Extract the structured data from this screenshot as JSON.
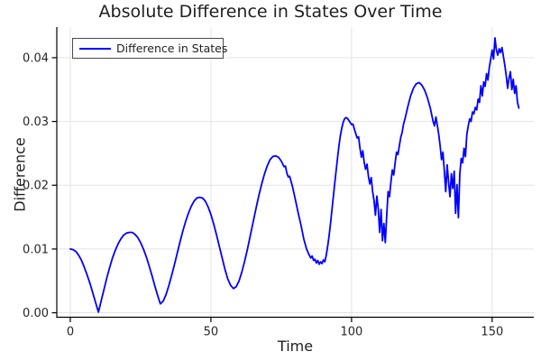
{
  "figure": {
    "title": "Absolute Difference in States Over Time",
    "background": "#ffffff"
  },
  "chart_data": {
    "type": "line",
    "title": "Absolute Difference in States Over Time",
    "xlabel": "Time",
    "ylabel": "Difference",
    "xlim": [
      -4.8,
      164.8
    ],
    "ylim": [
      -0.0007,
      0.0448
    ],
    "grid": true,
    "xticks": {
      "values": [
        0,
        50,
        100,
        150
      ],
      "labels": [
        "0",
        "50",
        "100",
        "150"
      ]
    },
    "yticks": {
      "values": [
        0,
        0.01,
        0.02,
        0.03,
        0.04
      ],
      "labels": [
        "0.00",
        "0.01",
        "0.02",
        "0.03",
        "0.04"
      ]
    },
    "style": {
      "line_color": "#0000ff",
      "line_width": 1.8,
      "grid_color": "#e4e4e4",
      "axis_color": "#000000",
      "text_color": "#1f1f1f",
      "tick_label_color": "#262626",
      "tick_label_size": 13
    },
    "legend": {
      "position": "top-left",
      "border_color": "#4a4a4a",
      "entries": [
        {
          "label": "Difference in States",
          "color": "#0000ff"
        }
      ]
    },
    "series": [
      {
        "name": "Difference in States",
        "color": "#0000ff",
        "points": [
          [
            0,
            0.01
          ],
          [
            1,
            0.0099
          ],
          [
            2,
            0.0096
          ],
          [
            3,
            0.009
          ],
          [
            4,
            0.0082
          ],
          [
            5,
            0.0071
          ],
          [
            6,
            0.0059
          ],
          [
            7,
            0.0046
          ],
          [
            8,
            0.0031
          ],
          [
            9,
            0.0016
          ],
          [
            10,
            0.0001
          ],
          [
            11,
            0.0019
          ],
          [
            12,
            0.0037
          ],
          [
            13,
            0.0055
          ],
          [
            14,
            0.0071
          ],
          [
            15,
            0.0086
          ],
          [
            16,
            0.0098
          ],
          [
            17,
            0.0108
          ],
          [
            18,
            0.0116
          ],
          [
            19,
            0.0122
          ],
          [
            20,
            0.0125
          ],
          [
            21,
            0.0126
          ],
          [
            22,
            0.0126
          ],
          [
            23,
            0.0123
          ],
          [
            24,
            0.0118
          ],
          [
            25,
            0.011
          ],
          [
            26,
            0.01
          ],
          [
            27,
            0.0088
          ],
          [
            28,
            0.0074
          ],
          [
            29,
            0.0059
          ],
          [
            30,
            0.0043
          ],
          [
            31,
            0.0028
          ],
          [
            32,
            0.0014
          ],
          [
            33,
            0.0018
          ],
          [
            34,
            0.0028
          ],
          [
            35,
            0.0042
          ],
          [
            36,
            0.0058
          ],
          [
            37,
            0.0075
          ],
          [
            38,
            0.0093
          ],
          [
            39,
            0.0111
          ],
          [
            40,
            0.0128
          ],
          [
            41,
            0.0143
          ],
          [
            42,
            0.0156
          ],
          [
            43,
            0.0167
          ],
          [
            44,
            0.0175
          ],
          [
            45,
            0.018
          ],
          [
            46,
            0.0181
          ],
          [
            47,
            0.018
          ],
          [
            48,
            0.0175
          ],
          [
            49,
            0.0166
          ],
          [
            50,
            0.0154
          ],
          [
            51,
            0.0139
          ],
          [
            52,
            0.0122
          ],
          [
            53,
            0.0104
          ],
          [
            54,
            0.0086
          ],
          [
            55,
            0.0068
          ],
          [
            56,
            0.0053
          ],
          [
            57,
            0.0043
          ],
          [
            58,
            0.0038
          ],
          [
            59,
            0.0041
          ],
          [
            60,
            0.005
          ],
          [
            61,
            0.0064
          ],
          [
            62,
            0.0081
          ],
          [
            63,
            0.01
          ],
          [
            64,
            0.0121
          ],
          [
            65,
            0.0142
          ],
          [
            66,
            0.0163
          ],
          [
            67,
            0.0183
          ],
          [
            68,
            0.0201
          ],
          [
            69,
            0.0217
          ],
          [
            70,
            0.023
          ],
          [
            71,
            0.024
          ],
          [
            72,
            0.0245
          ],
          [
            73,
            0.0246
          ],
          [
            74,
            0.0244
          ],
          [
            75,
            0.0238
          ],
          [
            76,
            0.0229
          ],
          [
            76.5,
            0.023
          ],
          [
            77,
            0.0219
          ],
          [
            77.5,
            0.0213
          ],
          [
            78,
            0.0214
          ],
          [
            78.5,
            0.0206
          ],
          [
            79,
            0.0198
          ],
          [
            80,
            0.0178
          ],
          [
            81,
            0.0157
          ],
          [
            82,
            0.0138
          ],
          [
            83,
            0.0116
          ],
          [
            84,
            0.01
          ],
          [
            85,
            0.009
          ],
          [
            85.5,
            0.0086
          ],
          [
            86,
            0.0089
          ],
          [
            86.5,
            0.0082
          ],
          [
            87,
            0.0084
          ],
          [
            87.5,
            0.0078
          ],
          [
            88,
            0.0082
          ],
          [
            88.5,
            0.0076
          ],
          [
            89,
            0.008
          ],
          [
            89.5,
            0.0077
          ],
          [
            90,
            0.0083
          ],
          [
            90.5,
            0.008
          ],
          [
            91,
            0.009
          ],
          [
            91.5,
            0.0104
          ],
          [
            92,
            0.012
          ],
          [
            92.5,
            0.0139
          ],
          [
            93,
            0.016
          ],
          [
            93.5,
            0.0181
          ],
          [
            94,
            0.0202
          ],
          [
            94.5,
            0.0222
          ],
          [
            95,
            0.0242
          ],
          [
            95.5,
            0.0261
          ],
          [
            96,
            0.0277
          ],
          [
            96.5,
            0.0289
          ],
          [
            97,
            0.0298
          ],
          [
            97.5,
            0.0304
          ],
          [
            98,
            0.0306
          ],
          [
            98.5,
            0.0305
          ],
          [
            99,
            0.0302
          ],
          [
            100,
            0.0295
          ],
          [
            100.5,
            0.0296
          ],
          [
            101,
            0.0288
          ],
          [
            102,
            0.0274
          ],
          [
            102.5,
            0.0276
          ],
          [
            103,
            0.0258
          ],
          [
            103.5,
            0.0244
          ],
          [
            104,
            0.0254
          ],
          [
            104.5,
            0.0236
          ],
          [
            105,
            0.0225
          ],
          [
            105.5,
            0.0233
          ],
          [
            106,
            0.0214
          ],
          [
            106.5,
            0.0202
          ],
          [
            107,
            0.0212
          ],
          [
            107.5,
            0.019
          ],
          [
            108,
            0.0176
          ],
          [
            108.5,
            0.0153
          ],
          [
            109,
            0.0183
          ],
          [
            109.5,
            0.0163
          ],
          [
            110,
            0.0126
          ],
          [
            110.5,
            0.0162
          ],
          [
            111,
            0.0113
          ],
          [
            111.5,
            0.014
          ],
          [
            112,
            0.011
          ],
          [
            112.5,
            0.0152
          ],
          [
            113,
            0.019
          ],
          [
            113.5,
            0.0182
          ],
          [
            114,
            0.0205
          ],
          [
            114.5,
            0.0224
          ],
          [
            115,
            0.0216
          ],
          [
            115.5,
            0.0235
          ],
          [
            116,
            0.0252
          ],
          [
            116.5,
            0.0248
          ],
          [
            117,
            0.0262
          ],
          [
            117.5,
            0.0275
          ],
          [
            118,
            0.0283
          ],
          [
            118.5,
            0.0296
          ],
          [
            119,
            0.0304
          ],
          [
            120,
            0.0323
          ],
          [
            121,
            0.034
          ],
          [
            122,
            0.0352
          ],
          [
            123,
            0.0359
          ],
          [
            124,
            0.0361
          ],
          [
            125,
            0.0357
          ],
          [
            126,
            0.0349
          ],
          [
            127,
            0.0337
          ],
          [
            128,
            0.0321
          ],
          [
            129,
            0.03
          ],
          [
            129.5,
            0.0293
          ],
          [
            130,
            0.0307
          ],
          [
            130.5,
            0.0294
          ],
          [
            131,
            0.028
          ],
          [
            131.5,
            0.0262
          ],
          [
            132,
            0.024
          ],
          [
            132.5,
            0.0252
          ],
          [
            133,
            0.0222
          ],
          [
            133.5,
            0.019
          ],
          [
            134,
            0.0232
          ],
          [
            134.5,
            0.0205
          ],
          [
            135,
            0.0182
          ],
          [
            135.5,
            0.0218
          ],
          [
            136,
            0.0195
          ],
          [
            136.5,
            0.0222
          ],
          [
            137,
            0.0156
          ],
          [
            137.5,
            0.0201
          ],
          [
            138,
            0.0149
          ],
          [
            138.5,
            0.0218
          ],
          [
            139,
            0.0242
          ],
          [
            139.5,
            0.0235
          ],
          [
            140,
            0.0258
          ],
          [
            140.5,
            0.0245
          ],
          [
            141,
            0.028
          ],
          [
            141.5,
            0.0293
          ],
          [
            142,
            0.0304
          ],
          [
            142.5,
            0.03
          ],
          [
            143,
            0.0315
          ],
          [
            143.5,
            0.0312
          ],
          [
            144,
            0.0322
          ],
          [
            144.5,
            0.0318
          ],
          [
            145,
            0.0335
          ],
          [
            145.5,
            0.033
          ],
          [
            146,
            0.0356
          ],
          [
            146.5,
            0.034
          ],
          [
            147,
            0.0362
          ],
          [
            147.5,
            0.0355
          ],
          [
            148,
            0.0375
          ],
          [
            148.5,
            0.0365
          ],
          [
            149,
            0.0385
          ],
          [
            149.5,
            0.0398
          ],
          [
            150,
            0.0412
          ],
          [
            150.5,
            0.0398
          ],
          [
            151,
            0.0431
          ],
          [
            151.5,
            0.0412
          ],
          [
            152,
            0.0404
          ],
          [
            152.5,
            0.0414
          ],
          [
            153,
            0.0408
          ],
          [
            153.5,
            0.0416
          ],
          [
            154,
            0.0402
          ],
          [
            154.5,
            0.0388
          ],
          [
            155,
            0.0372
          ],
          [
            155.5,
            0.0352
          ],
          [
            156,
            0.0368
          ],
          [
            156.5,
            0.0378
          ],
          [
            157,
            0.035
          ],
          [
            157.5,
            0.0366
          ],
          [
            158,
            0.0344
          ],
          [
            158.5,
            0.0356
          ],
          [
            159,
            0.033
          ],
          [
            159.5,
            0.0321
          ]
        ]
      }
    ]
  }
}
